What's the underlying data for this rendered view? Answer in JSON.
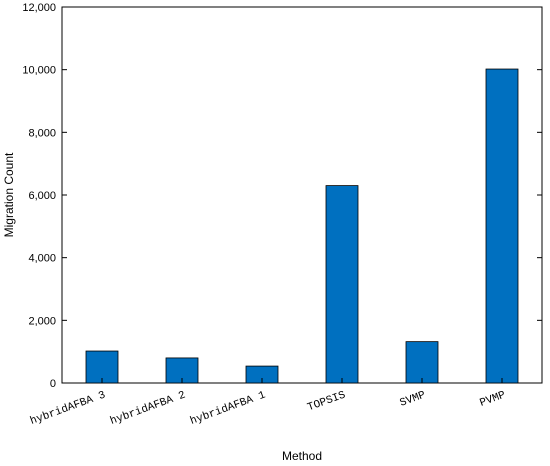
{
  "chart_data": {
    "type": "bar",
    "title": "",
    "xlabel": "Method",
    "ylabel": "Migration Count",
    "categories": [
      "hybridAFBA 3",
      "hybridAFBA 2",
      "hybridAFBA 1",
      "TOPSIS",
      "SVMP",
      "PVMP"
    ],
    "values": [
      1020,
      800,
      540,
      6300,
      1320,
      10020
    ],
    "ylim": [
      0,
      12000
    ],
    "yticks": [
      0,
      2000,
      4000,
      6000,
      8000,
      10000,
      12000
    ],
    "ytick_labels": [
      "0",
      "2,000",
      "4,000",
      "6,000",
      "8,000",
      "10,000",
      "12,000"
    ],
    "bar_color": "#0070c0",
    "grid": false,
    "legend": "none"
  }
}
